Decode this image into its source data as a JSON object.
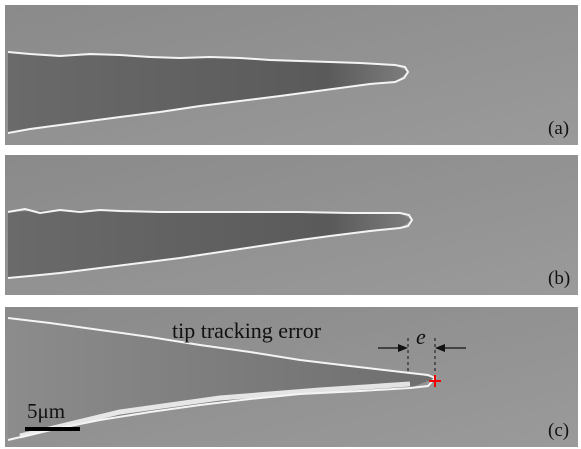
{
  "panels": [
    {
      "label": "(a)"
    },
    {
      "label": "(b)"
    },
    {
      "label": "(c)"
    }
  ],
  "annotation": {
    "text": "tip tracking error",
    "symbol": "e"
  },
  "scale_bar": {
    "label": "5μm"
  }
}
